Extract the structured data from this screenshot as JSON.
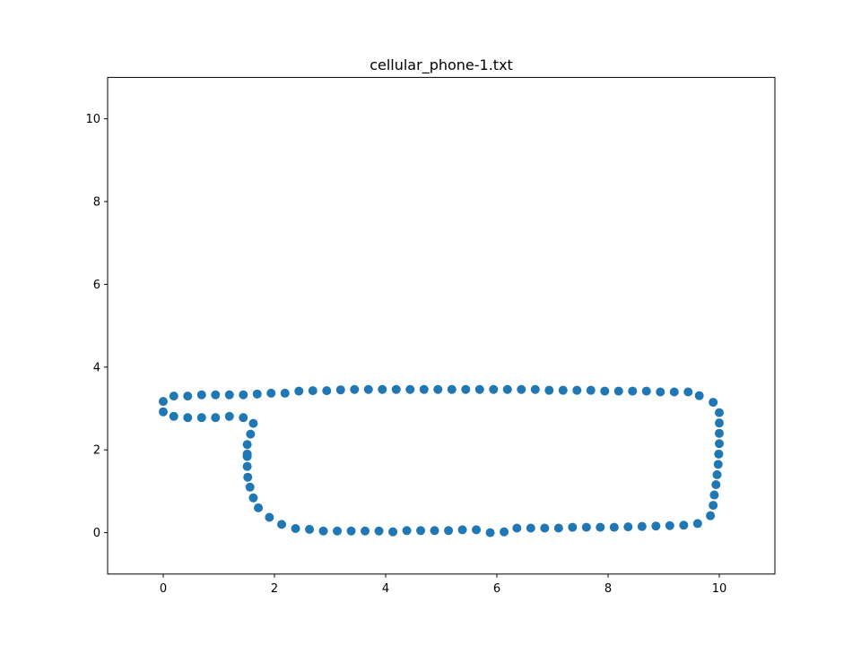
{
  "chart_data": {
    "type": "scatter",
    "title": "cellular_phone-1.txt",
    "xlabel": "",
    "ylabel": "",
    "xlim": [
      -1,
      11
    ],
    "ylim": [
      -1,
      11
    ],
    "xticks": [
      0,
      2,
      4,
      6,
      8,
      10
    ],
    "yticks": [
      0,
      2,
      4,
      6,
      8,
      10
    ],
    "grid": false,
    "marker_color": "#1f77b4",
    "series": [
      {
        "points": [
          [
            0.0,
            3.17
          ],
          [
            0.19,
            3.3
          ],
          [
            0.44,
            3.3
          ],
          [
            0.69,
            3.33
          ],
          [
            0.94,
            3.33
          ],
          [
            1.19,
            3.33
          ],
          [
            1.44,
            3.33
          ],
          [
            1.69,
            3.35
          ],
          [
            1.94,
            3.37
          ],
          [
            2.19,
            3.37
          ],
          [
            2.44,
            3.42
          ],
          [
            2.69,
            3.43
          ],
          [
            2.94,
            3.43
          ],
          [
            3.19,
            3.45
          ],
          [
            3.44,
            3.46
          ],
          [
            3.69,
            3.46
          ],
          [
            3.94,
            3.46
          ],
          [
            4.19,
            3.46
          ],
          [
            4.44,
            3.46
          ],
          [
            4.69,
            3.46
          ],
          [
            4.94,
            3.46
          ],
          [
            5.19,
            3.46
          ],
          [
            5.44,
            3.46
          ],
          [
            5.69,
            3.46
          ],
          [
            5.94,
            3.46
          ],
          [
            6.19,
            3.46
          ],
          [
            6.44,
            3.46
          ],
          [
            6.69,
            3.46
          ],
          [
            6.94,
            3.44
          ],
          [
            7.19,
            3.44
          ],
          [
            7.44,
            3.44
          ],
          [
            7.69,
            3.44
          ],
          [
            7.94,
            3.42
          ],
          [
            8.19,
            3.42
          ],
          [
            8.44,
            3.42
          ],
          [
            8.69,
            3.42
          ],
          [
            8.94,
            3.4
          ],
          [
            9.19,
            3.4
          ],
          [
            9.44,
            3.4
          ],
          [
            9.64,
            3.31
          ],
          [
            9.89,
            3.15
          ],
          [
            10.0,
            2.9
          ],
          [
            10.0,
            2.65
          ],
          [
            10.0,
            2.4
          ],
          [
            10.0,
            2.15
          ],
          [
            9.99,
            1.9
          ],
          [
            9.98,
            1.65
          ],
          [
            9.96,
            1.4
          ],
          [
            9.94,
            1.16
          ],
          [
            9.91,
            0.91
          ],
          [
            9.89,
            0.66
          ],
          [
            9.84,
            0.41
          ],
          [
            9.61,
            0.22
          ],
          [
            9.36,
            0.18
          ],
          [
            9.11,
            0.17
          ],
          [
            8.86,
            0.16
          ],
          [
            8.61,
            0.15
          ],
          [
            8.36,
            0.14
          ],
          [
            8.11,
            0.13
          ],
          [
            7.86,
            0.13
          ],
          [
            7.61,
            0.13
          ],
          [
            7.36,
            0.13
          ],
          [
            7.11,
            0.11
          ],
          [
            6.86,
            0.11
          ],
          [
            6.61,
            0.11
          ],
          [
            6.36,
            0.11
          ],
          [
            6.13,
            0.02
          ],
          [
            5.88,
            0.0
          ],
          [
            5.63,
            0.07
          ],
          [
            5.38,
            0.07
          ],
          [
            5.13,
            0.05
          ],
          [
            4.88,
            0.05
          ],
          [
            4.63,
            0.05
          ],
          [
            4.38,
            0.05
          ],
          [
            4.13,
            0.02
          ],
          [
            3.88,
            0.04
          ],
          [
            3.63,
            0.04
          ],
          [
            3.38,
            0.04
          ],
          [
            3.13,
            0.04
          ],
          [
            2.88,
            0.04
          ],
          [
            2.63,
            0.08
          ],
          [
            2.38,
            0.1
          ],
          [
            2.13,
            0.2
          ],
          [
            1.91,
            0.37
          ],
          [
            1.71,
            0.6
          ],
          [
            1.62,
            0.84
          ],
          [
            1.56,
            1.1
          ],
          [
            1.52,
            1.34
          ],
          [
            1.51,
            1.6
          ],
          [
            1.51,
            1.84
          ],
          [
            1.51,
            1.9
          ],
          [
            1.51,
            2.13
          ],
          [
            1.57,
            2.38
          ],
          [
            1.62,
            2.64
          ],
          [
            1.44,
            2.78
          ],
          [
            1.19,
            2.81
          ],
          [
            0.94,
            2.78
          ],
          [
            0.69,
            2.78
          ],
          [
            0.44,
            2.78
          ],
          [
            0.19,
            2.81
          ],
          [
            0.0,
            2.92
          ]
        ]
      }
    ]
  }
}
